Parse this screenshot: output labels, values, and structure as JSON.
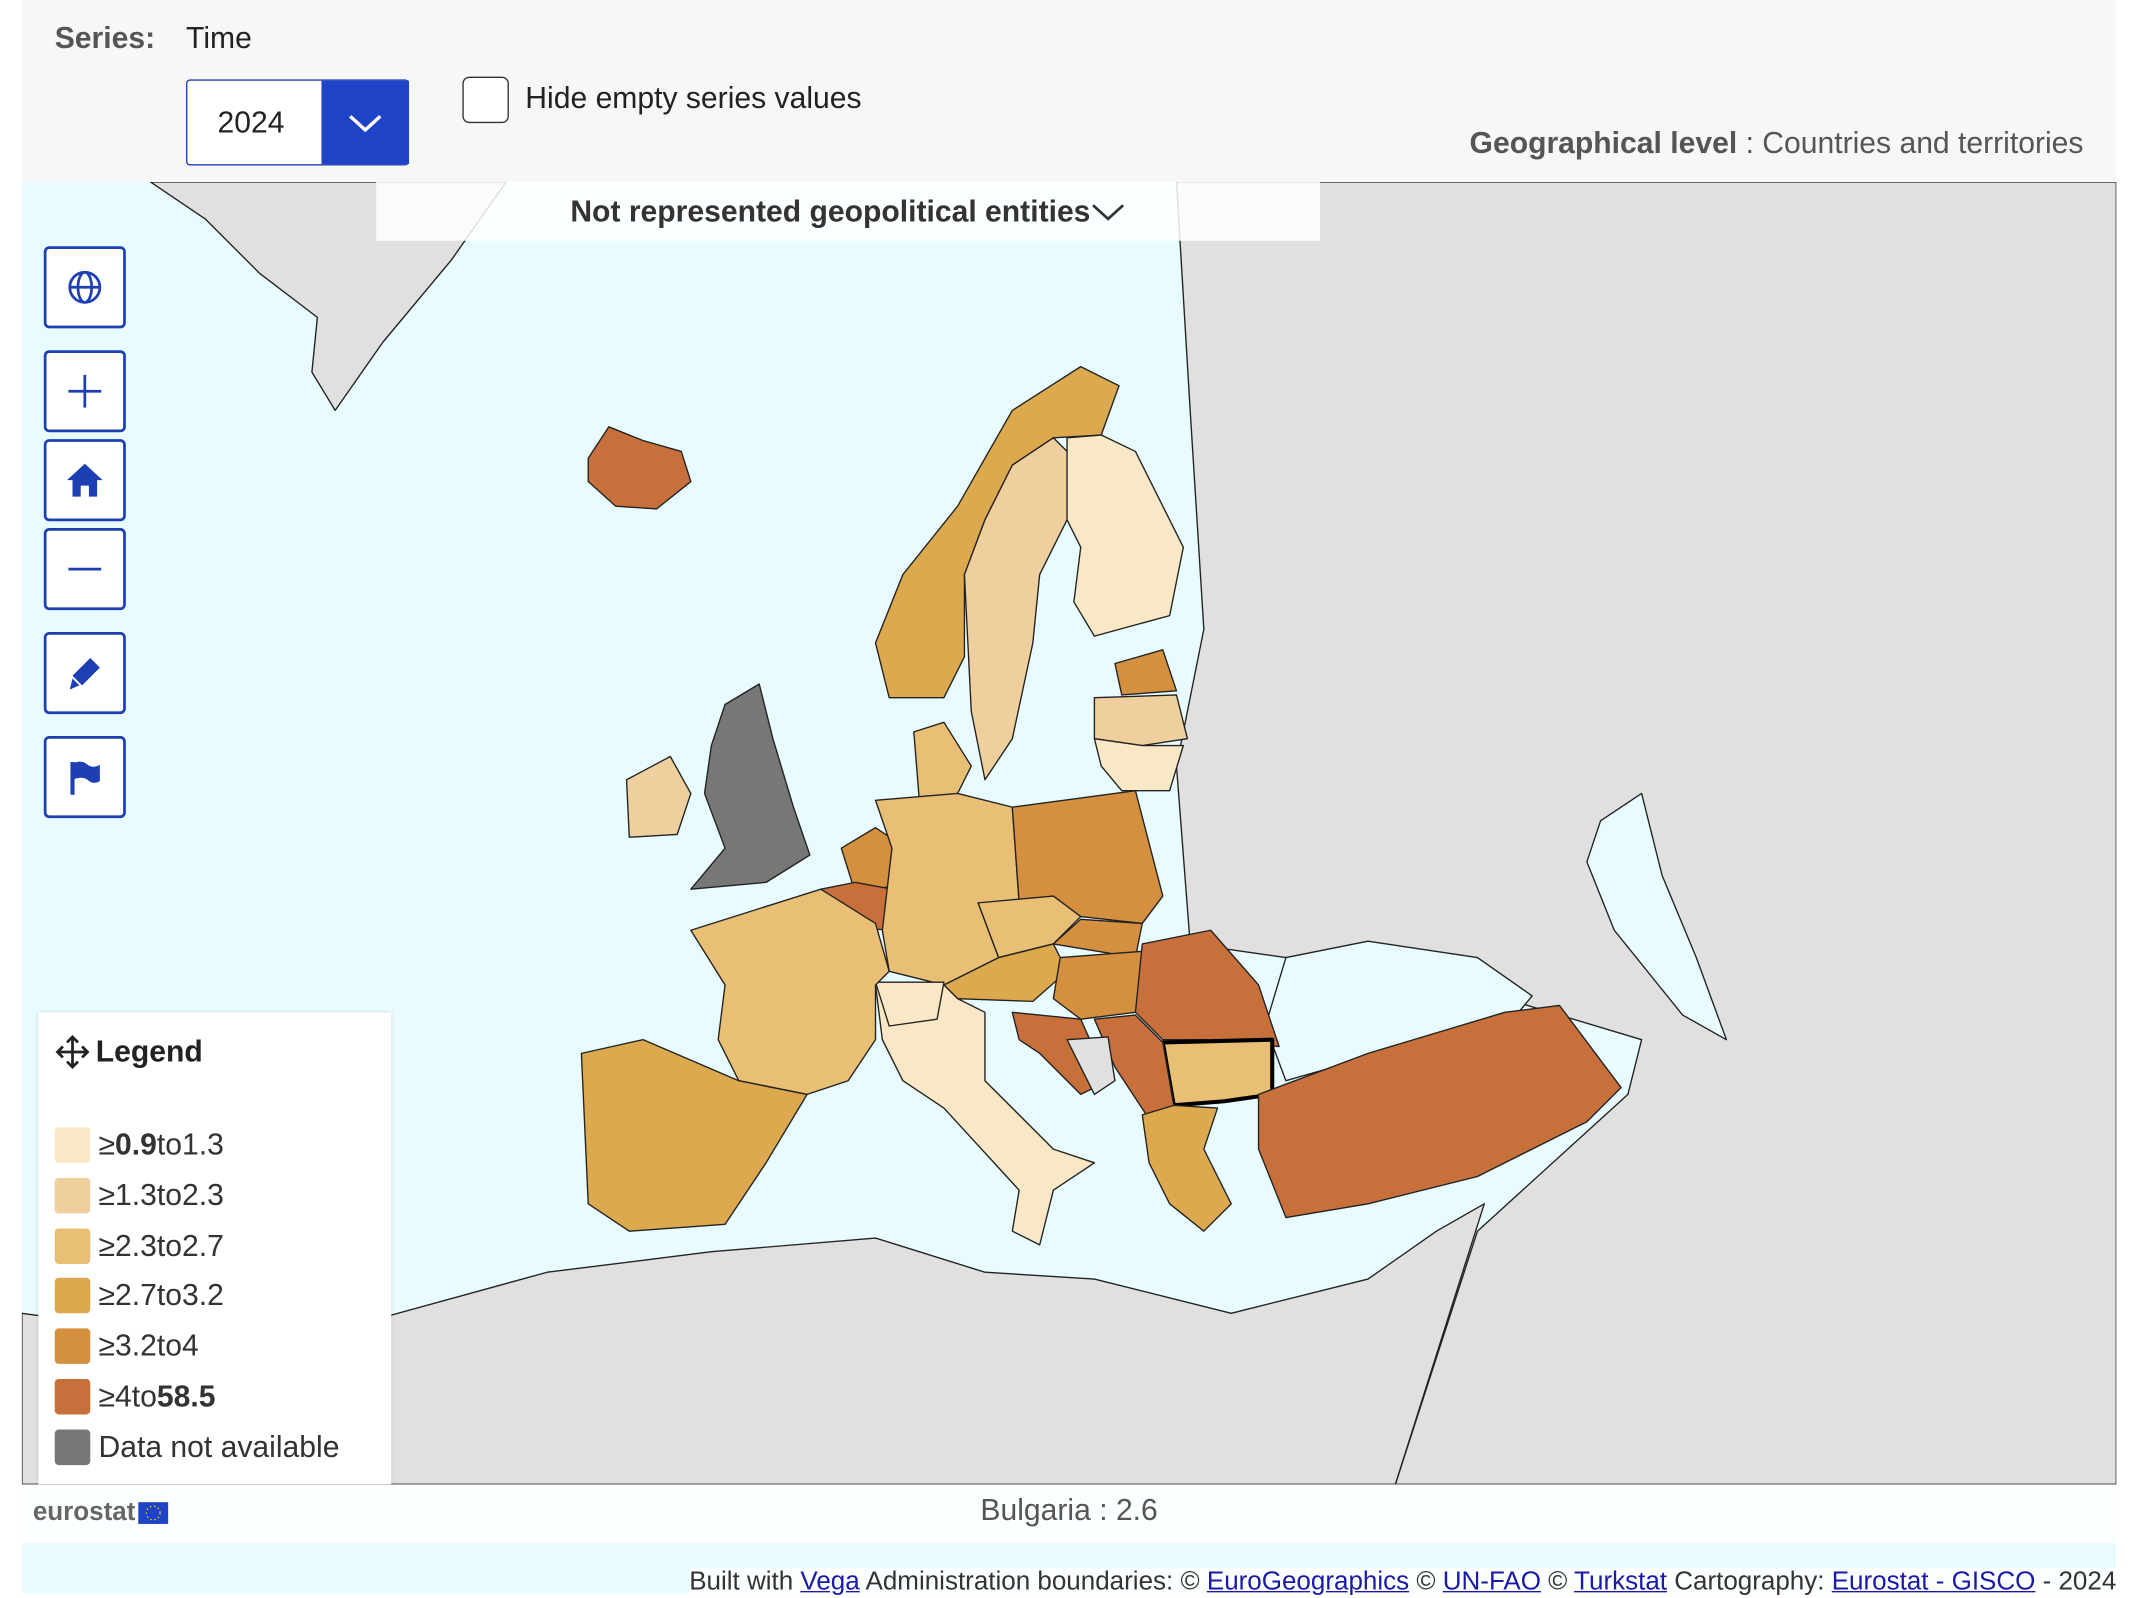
{
  "series_label": "Series:",
  "time_label": "Time",
  "time_value": "2024",
  "hide_empty": "Hide empty series values",
  "geo_level": {
    "label": "Geographical level",
    "value": ": Countries and territories"
  },
  "not_represented": "Not represented geopolitical entities",
  "legend": {
    "title": "Legend",
    "ge": "≥",
    "to_word": "to",
    "classes": [
      {
        "from": 0.9,
        "to": 1.3,
        "color": "#f9e7c6"
      },
      {
        "from": 1.3,
        "to": 2.3,
        "color": "#eecf9d"
      },
      {
        "from": 2.3,
        "to": 2.7,
        "color": "#e8bf74"
      },
      {
        "from": 2.7,
        "to": 3.2,
        "color": "#dda94f"
      },
      {
        "from": 3.2,
        "to": 4,
        "color": "#d48f3f"
      },
      {
        "from": 4,
        "to": 58.5,
        "color": "#c8703c"
      }
    ],
    "na": {
      "label": "Data not available",
      "color": "#777777"
    }
  },
  "tooltip": {
    "country": "Bulgaria",
    "separator": ":",
    "value": 2.6
  },
  "logo": "eurostat",
  "attribution": [
    {
      "text": "Built with",
      "link": false
    },
    {
      "text": "Vega",
      "link": true
    },
    {
      "text": "Administration boundaries: ©",
      "link": false
    },
    {
      "text": "EuroGeographics",
      "link": true
    },
    {
      "text": "©",
      "link": false
    },
    {
      "text": "UN-FAO",
      "link": true
    },
    {
      "text": "©",
      "link": false
    },
    {
      "text": "Turkstat",
      "link": true
    },
    {
      "text": "Cartography:",
      "link": false
    },
    {
      "text": "Eurostat - GISCO",
      "link": true
    },
    {
      "text": "- 2024",
      "link": false
    }
  ]
}
